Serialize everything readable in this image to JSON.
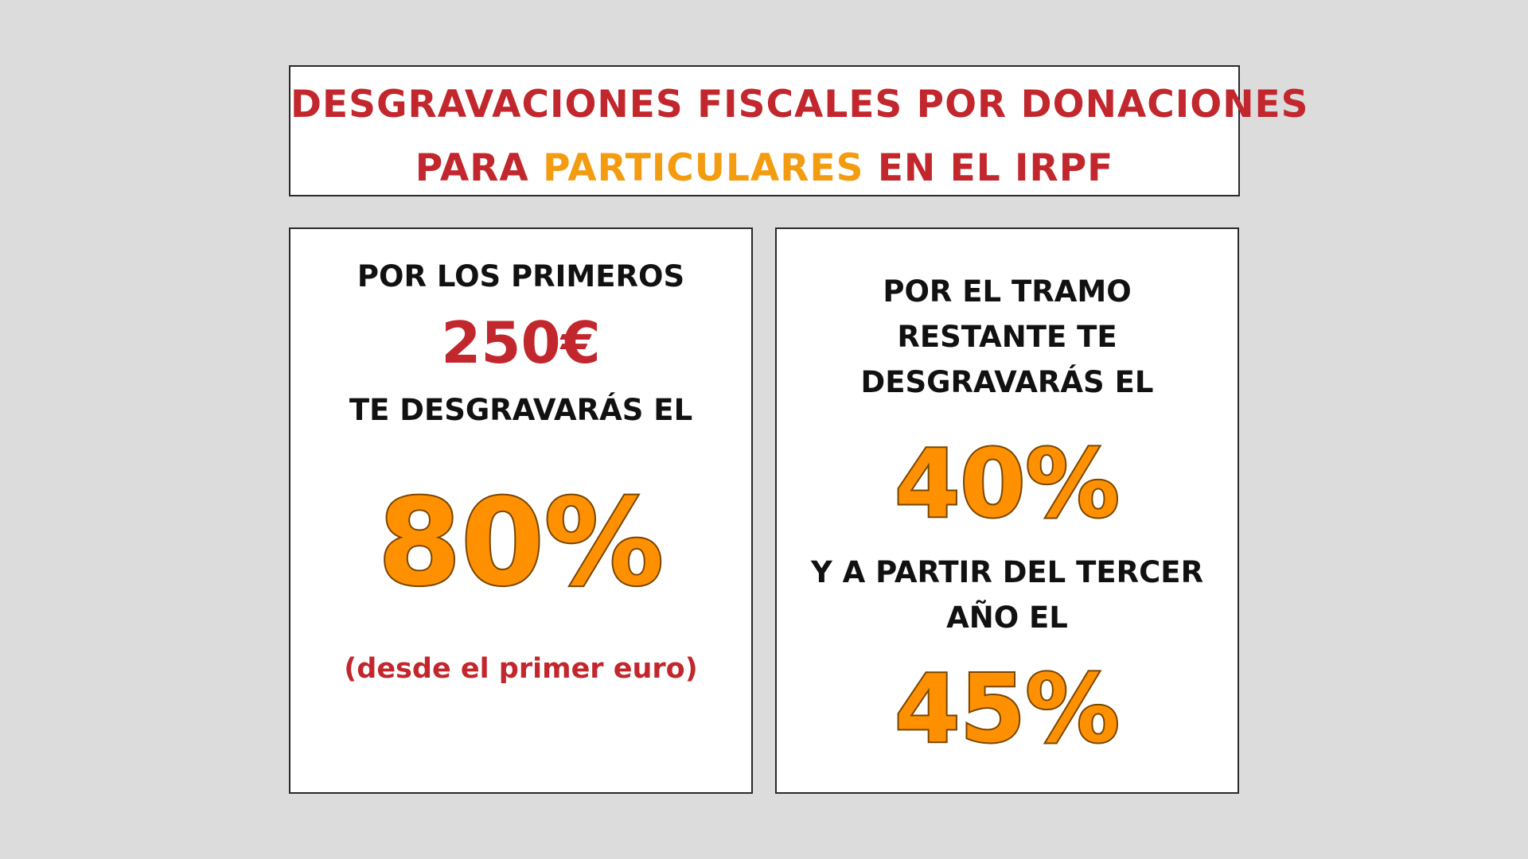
{
  "header": {
    "line1": "DESGRAVACIONES FISCALES POR DONACIONES",
    "line2_before": "PARA",
    "line2_highlight": "PARTICULARES",
    "line2_after": "EN EL IRPF"
  },
  "left_panel": {
    "intro": "POR LOS PRIMEROS",
    "amount": "250€",
    "deduct_text": "TE DESGRAVARÁS EL",
    "percentage": "80%",
    "note": "(desde el primer euro)"
  },
  "right_panel": {
    "intro_line1": "POR EL TRAMO",
    "intro_line2": "RESTANTE TE",
    "intro_line3": "DESGRAVARÁS EL",
    "percentage1": "40%",
    "third_year_line1": "Y A PARTIR DEL TERCER",
    "third_year_line2": "AÑO EL",
    "percentage2": "45%"
  },
  "colors": {
    "title_red": "#c1272d",
    "highlight_orange": "#f39c12",
    "big_number_fill": "#ff9100",
    "big_number_outline": "#7a4500"
  }
}
